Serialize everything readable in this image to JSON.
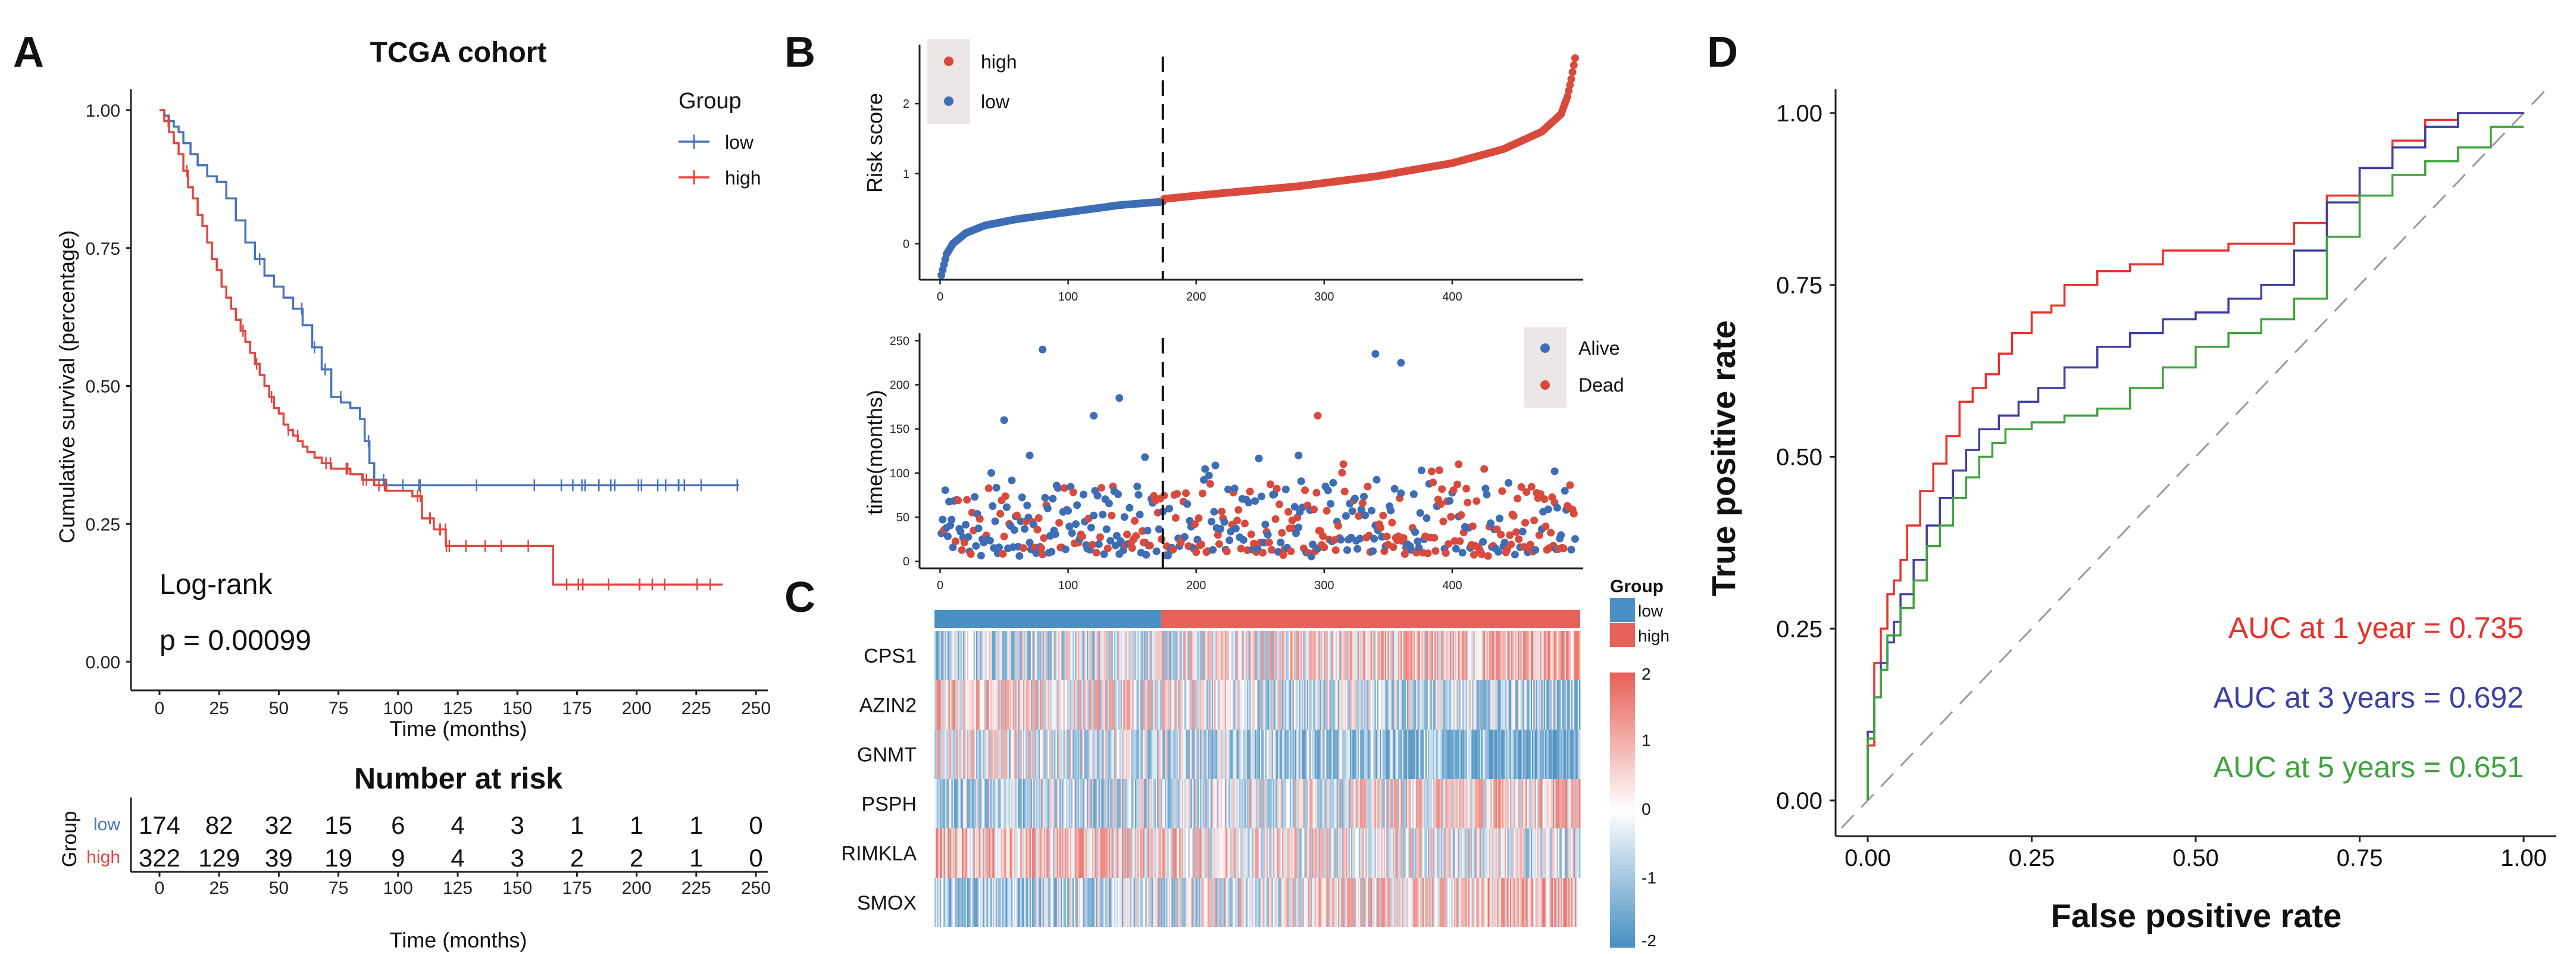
{
  "colors": {
    "low": "#4a73b8",
    "high": "#e0473f",
    "risk_low": "#3d6db5",
    "risk_high": "#d94a3d",
    "alive": "#3d6db5",
    "dead": "#d94a3d",
    "auc1": "#e8312b",
    "auc3": "#3c3fa3",
    "auc5": "#3fa33c",
    "heat_low": "#4a90c2",
    "heat_high": "#e8625a",
    "diag": "#9a9a9a"
  },
  "panels": {
    "A": {
      "label": "A",
      "title": "TCGA cohort",
      "annotations": [
        "Log-rank",
        "p = 0.00099"
      ],
      "risk_table": {
        "title": "Number at risk",
        "ylabel": "Group",
        "xlabel": "Time (months)",
        "rows": [
          {
            "name": "low",
            "counts": [
              "174",
              "82",
              "32",
              "15",
              "6",
              "4",
              "3",
              "1",
              "1",
              "1",
              "0"
            ]
          },
          {
            "name": "high",
            "counts": [
              "322",
              "129",
              "39",
              "19",
              "9",
              "4",
              "3",
              "2",
              "2",
              "1",
              "0"
            ]
          }
        ]
      }
    },
    "B": {
      "label": "B"
    },
    "C": {
      "label": "C"
    },
    "D": {
      "label": "D"
    }
  },
  "chart_data": [
    {
      "id": "km",
      "type": "line",
      "title": "TCGA cohort",
      "xlabel": "Time (months)",
      "ylabel": "Cumulative survival (percentage)",
      "xlim": [
        0,
        250
      ],
      "ylim": [
        0,
        1
      ],
      "xticks": [
        "0",
        "25",
        "50",
        "75",
        "100",
        "125",
        "150",
        "175",
        "200",
        "225",
        "250"
      ],
      "yticks": [
        "0.00",
        "0.25",
        "0.50",
        "0.75",
        "1.00"
      ],
      "legend_title": "Group",
      "legend_position": "top-right",
      "series": [
        {
          "name": "low",
          "color_key": "low",
          "x": [
            0,
            2,
            4,
            6,
            8,
            10,
            13,
            16,
            20,
            24,
            28,
            32,
            36,
            40,
            44,
            48,
            52,
            56,
            60,
            64,
            68,
            72,
            76,
            80,
            84,
            86,
            88,
            90,
            95,
            110,
            130,
            155,
            170,
            200,
            240,
            243
          ],
          "y": [
            1.0,
            0.99,
            0.98,
            0.97,
            0.96,
            0.94,
            0.92,
            0.9,
            0.88,
            0.87,
            0.84,
            0.8,
            0.76,
            0.73,
            0.7,
            0.68,
            0.66,
            0.64,
            0.61,
            0.57,
            0.53,
            0.48,
            0.47,
            0.46,
            0.44,
            0.4,
            0.36,
            0.33,
            0.32,
            0.32,
            0.32,
            0.32,
            0.32,
            0.32,
            0.32,
            0.32
          ]
        },
        {
          "name": "high",
          "color_key": "high",
          "x": [
            0,
            2,
            4,
            6,
            8,
            10,
            12,
            14,
            16,
            18,
            20,
            22,
            24,
            26,
            28,
            30,
            32,
            34,
            36,
            38,
            40,
            42,
            44,
            46,
            48,
            50,
            52,
            54,
            56,
            58,
            60,
            62,
            65,
            68,
            72,
            76,
            80,
            85,
            90,
            95,
            100,
            106,
            110,
            115,
            120,
            130,
            140,
            150,
            160,
            165,
            180,
            200,
            220,
            236
          ],
          "y": [
            1.0,
            0.98,
            0.96,
            0.94,
            0.92,
            0.89,
            0.86,
            0.84,
            0.81,
            0.79,
            0.76,
            0.73,
            0.71,
            0.68,
            0.66,
            0.64,
            0.62,
            0.6,
            0.58,
            0.56,
            0.54,
            0.52,
            0.5,
            0.48,
            0.46,
            0.45,
            0.43,
            0.42,
            0.41,
            0.4,
            0.39,
            0.38,
            0.37,
            0.36,
            0.35,
            0.35,
            0.34,
            0.33,
            0.32,
            0.31,
            0.31,
            0.3,
            0.26,
            0.24,
            0.21,
            0.21,
            0.21,
            0.21,
            0.21,
            0.14,
            0.14,
            0.14,
            0.14,
            0.14
          ]
        }
      ]
    },
    {
      "id": "risk",
      "type": "scatter",
      "ylabel": "Risk score",
      "xlim": [
        -10,
        500
      ],
      "ylim": [
        -0.6,
        2.8
      ],
      "xticks": [
        "0",
        "100",
        "200",
        "300",
        "400"
      ],
      "yticks": [
        "0",
        "1",
        "2"
      ],
      "cutoff_x": 174,
      "legend": [
        "high",
        "low"
      ],
      "legend_position": "top-left",
      "n": 496,
      "n_low": 174,
      "curve": {
        "x": [
          1,
          5,
          10,
          20,
          35,
          60,
          100,
          140,
          174,
          175,
          220,
          280,
          340,
          400,
          440,
          470,
          485,
          490,
          493,
          496
        ],
        "y": [
          -0.45,
          -0.15,
          0.0,
          0.15,
          0.26,
          0.35,
          0.45,
          0.55,
          0.6,
          0.64,
          0.72,
          0.82,
          0.96,
          1.15,
          1.35,
          1.6,
          1.85,
          2.1,
          2.35,
          2.65
        ]
      }
    },
    {
      "id": "time",
      "type": "scatter",
      "ylabel": "time(months)",
      "xlim": [
        -10,
        500
      ],
      "ylim": [
        -8,
        255
      ],
      "xticks": [
        "0",
        "100",
        "200",
        "300",
        "400"
      ],
      "yticks": [
        "0",
        "50",
        "100",
        "150",
        "200",
        "250"
      ],
      "cutoff_x": 174,
      "legend": [
        "Alive",
        "Dead"
      ],
      "legend_position": "top-right",
      "notable_points": [
        {
          "x": 80,
          "y": 240,
          "status": "Alive"
        },
        {
          "x": 340,
          "y": 235,
          "status": "Alive"
        },
        {
          "x": 360,
          "y": 225,
          "status": "Alive"
        },
        {
          "x": 140,
          "y": 185,
          "status": "Alive"
        },
        {
          "x": 120,
          "y": 165,
          "status": "Alive"
        },
        {
          "x": 50,
          "y": 160,
          "status": "Alive"
        },
        {
          "x": 295,
          "y": 165,
          "status": "Dead"
        },
        {
          "x": 70,
          "y": 120,
          "status": "Alive"
        },
        {
          "x": 160,
          "y": 118,
          "status": "Alive"
        },
        {
          "x": 280,
          "y": 120,
          "status": "Alive"
        },
        {
          "x": 405,
          "y": 110,
          "status": "Dead"
        },
        {
          "x": 480,
          "y": 102,
          "status": "Alive"
        }
      ]
    },
    {
      "id": "heatmap",
      "type": "heatmap",
      "rows": [
        "CPS1",
        "AZIN2",
        "GNMT",
        "PSPH",
        "RIMKLA",
        "SMOX"
      ],
      "legend_title": "Group",
      "groups": [
        "low",
        "high"
      ],
      "scale_ticks": [
        "2",
        "1",
        "0",
        "-1",
        "-2"
      ],
      "n_columns": 496,
      "n_low": 174
    },
    {
      "id": "roc",
      "type": "line",
      "xlabel": "False positive rate",
      "ylabel": "True positive rate",
      "xlim": [
        0,
        1
      ],
      "ylim": [
        0,
        1
      ],
      "xticks": [
        "0.00",
        "0.25",
        "0.50",
        "0.75",
        "1.00"
      ],
      "yticks": [
        "0.00",
        "0.25",
        "0.50",
        "0.75",
        "1.00"
      ],
      "series": [
        {
          "name": "AUC at 1 year  = 0.735",
          "color_key": "auc1",
          "x": [
            0,
            0,
            0.01,
            0.01,
            0.02,
            0.03,
            0.04,
            0.05,
            0.06,
            0.08,
            0.1,
            0.12,
            0.14,
            0.16,
            0.18,
            0.2,
            0.22,
            0.25,
            0.28,
            0.3,
            0.35,
            0.4,
            0.45,
            0.5,
            0.55,
            0.6,
            0.65,
            0.7,
            0.75,
            0.8,
            0.85,
            0.9,
            0.95,
            1.0
          ],
          "y": [
            0,
            0.03,
            0.08,
            0.14,
            0.2,
            0.25,
            0.3,
            0.32,
            0.35,
            0.4,
            0.45,
            0.49,
            0.53,
            0.58,
            0.6,
            0.62,
            0.65,
            0.68,
            0.71,
            0.72,
            0.75,
            0.77,
            0.78,
            0.8,
            0.8,
            0.81,
            0.81,
            0.84,
            0.88,
            0.92,
            0.96,
            0.99,
            1.0,
            1.0
          ]
        },
        {
          "name": "AUC at 3 years = 0.692",
          "color_key": "auc3",
          "x": [
            0,
            0,
            0.01,
            0.02,
            0.03,
            0.04,
            0.05,
            0.07,
            0.09,
            0.11,
            0.13,
            0.15,
            0.17,
            0.2,
            0.23,
            0.26,
            0.3,
            0.35,
            0.4,
            0.45,
            0.5,
            0.55,
            0.6,
            0.65,
            0.7,
            0.75,
            0.8,
            0.85,
            0.9,
            0.95,
            1.0
          ],
          "y": [
            0,
            0.04,
            0.1,
            0.15,
            0.2,
            0.23,
            0.26,
            0.3,
            0.35,
            0.4,
            0.44,
            0.48,
            0.51,
            0.54,
            0.56,
            0.58,
            0.6,
            0.63,
            0.66,
            0.68,
            0.7,
            0.71,
            0.73,
            0.75,
            0.8,
            0.87,
            0.92,
            0.95,
            0.98,
            1.0,
            1.0
          ]
        },
        {
          "name": "AUC at 5 years = 0.651",
          "color_key": "auc5",
          "x": [
            0,
            0,
            0.01,
            0.02,
            0.03,
            0.05,
            0.07,
            0.09,
            0.11,
            0.13,
            0.15,
            0.17,
            0.19,
            0.21,
            0.25,
            0.3,
            0.35,
            0.4,
            0.45,
            0.5,
            0.55,
            0.6,
            0.65,
            0.7,
            0.75,
            0.8,
            0.85,
            0.9,
            0.95,
            1.0
          ],
          "y": [
            0,
            0.04,
            0.09,
            0.15,
            0.19,
            0.24,
            0.28,
            0.32,
            0.37,
            0.4,
            0.44,
            0.47,
            0.5,
            0.52,
            0.54,
            0.55,
            0.56,
            0.57,
            0.6,
            0.63,
            0.66,
            0.68,
            0.7,
            0.73,
            0.82,
            0.88,
            0.91,
            0.93,
            0.95,
            0.98
          ]
        }
      ],
      "auc_labels": [
        "AUC at 1 year  = 0.735",
        "AUC at 3 years = 0.692",
        "AUC at 5 years = 0.651"
      ]
    }
  ]
}
